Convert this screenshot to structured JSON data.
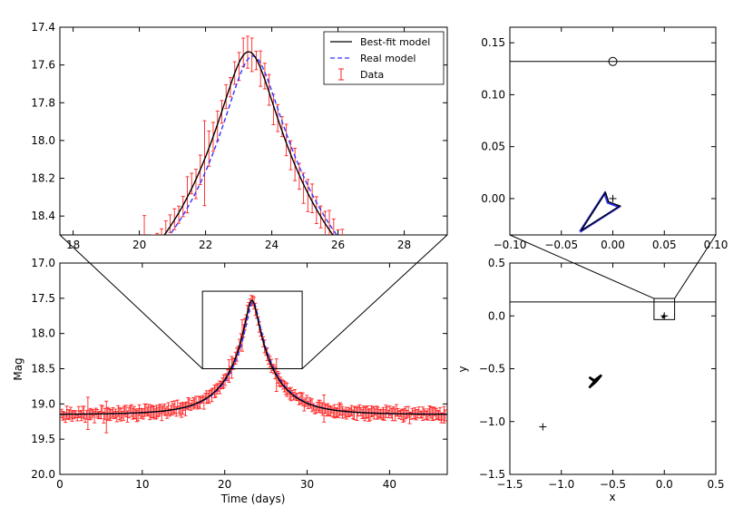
{
  "chart_data": [
    {
      "id": "zoom",
      "type": "line",
      "xlim": [
        17.6,
        29.3
      ],
      "ylim": [
        18.5,
        17.4
      ],
      "y_inverted": true,
      "xticks": [
        18,
        20,
        22,
        24,
        26,
        28
      ],
      "xtick_labels": [
        "18",
        "20",
        "22",
        "24",
        "26",
        "28"
      ],
      "yticks": [
        17.4,
        17.6,
        17.8,
        18.0,
        18.2,
        18.4
      ],
      "ytick_labels": [
        "17.4",
        "17.6",
        "17.8",
        "18.0",
        "18.2",
        "18.4"
      ],
      "legend": {
        "placement": "top-right",
        "entries": [
          {
            "label": "Best-fit model",
            "style": "solid",
            "color": "#000000"
          },
          {
            "label": "Real model",
            "style": "dashed",
            "color": "#3333ff"
          },
          {
            "label": "Data",
            "style": "errorbar",
            "color": "#ff2020"
          }
        ]
      }
    },
    {
      "id": "full",
      "type": "line",
      "xlabel": "Time (days)",
      "ylabel": "Mag",
      "xlim": [
        0,
        47
      ],
      "ylim": [
        20.0,
        17.0
      ],
      "y_inverted": true,
      "xticks": [
        0,
        10,
        20,
        30,
        40
      ],
      "xtick_labels": [
        "0",
        "10",
        "20",
        "30",
        "40"
      ],
      "yticks": [
        17.0,
        17.5,
        18.0,
        18.5,
        19.0,
        19.5,
        20.0
      ],
      "ytick_labels": [
        "17.0",
        "17.5",
        "18.0",
        "18.5",
        "19.0",
        "19.5",
        "20.0"
      ],
      "model": {
        "t0": 23.3,
        "baseline_mag": 19.15,
        "peak_mag": 17.53,
        "u0": 0.13,
        "tE": 5.55
      },
      "inset_box": {
        "x": [
          17.3,
          29.4
        ],
        "y": [
          17.4,
          18.5
        ]
      },
      "series": [
        {
          "name": "Best-fit model",
          "color": "#000000"
        },
        {
          "name": "Real model",
          "color": "#3333ff"
        },
        {
          "name": "Data",
          "color": "#ff2020",
          "error": 0.06
        }
      ]
    },
    {
      "id": "traj_zoom",
      "type": "scatter",
      "xlim": [
        -0.1,
        0.1
      ],
      "ylim": [
        -0.035,
        0.165
      ],
      "xticks": [
        -0.1,
        -0.05,
        0.0,
        0.05,
        0.1
      ],
      "xtick_labels": [
        "−0.10",
        "−0.05",
        "0.00",
        "0.05",
        "0.10"
      ],
      "yticks": [
        0.0,
        0.05,
        0.1,
        0.15
      ],
      "ytick_labels": [
        "0.00",
        "0.05",
        "0.10",
        "0.15"
      ],
      "trajectory_y": 0.132,
      "source": {
        "x": 0.0,
        "y": 0.132
      },
      "lens_mark": {
        "x": 0.0,
        "y": 0.0
      },
      "caustic": [
        [
          -0.032,
          -0.032
        ],
        [
          -0.008,
          0.005
        ],
        [
          -0.005,
          -0.004
        ],
        [
          0.006,
          -0.008
        ],
        [
          -0.032,
          -0.032
        ]
      ]
    },
    {
      "id": "traj_full",
      "type": "scatter",
      "xlabel": "x",
      "ylabel": "y",
      "xlim": [
        -1.5,
        0.5
      ],
      "ylim": [
        -1.5,
        0.5
      ],
      "xticks": [
        -1.5,
        -1.0,
        -0.5,
        0.0,
        0.5
      ],
      "xtick_labels": [
        "−1.5",
        "−1.0",
        "−0.5",
        "0.0",
        "0.5"
      ],
      "yticks": [
        -1.5,
        -1.0,
        -0.5,
        0.0,
        0.5
      ],
      "ytick_labels": [
        "−1.5",
        "−1.0",
        "−0.5",
        "0.0",
        "0.5"
      ],
      "trajectory_y": 0.132,
      "inset_box": {
        "x": [
          -0.1,
          0.1
        ],
        "y": [
          -0.035,
          0.165
        ]
      },
      "lens_marks": [
        {
          "x": -1.18,
          "y": -1.05
        },
        {
          "x": 0.0,
          "y": 0.0
        }
      ],
      "caustic_large": [
        [
          -0.73,
          -0.58
        ],
        [
          -0.68,
          -0.61
        ],
        [
          -0.61,
          -0.56
        ],
        [
          -0.66,
          -0.62
        ],
        [
          -0.73,
          -0.68
        ],
        [
          -0.68,
          -0.62
        ],
        [
          -0.73,
          -0.58
        ]
      ]
    }
  ]
}
